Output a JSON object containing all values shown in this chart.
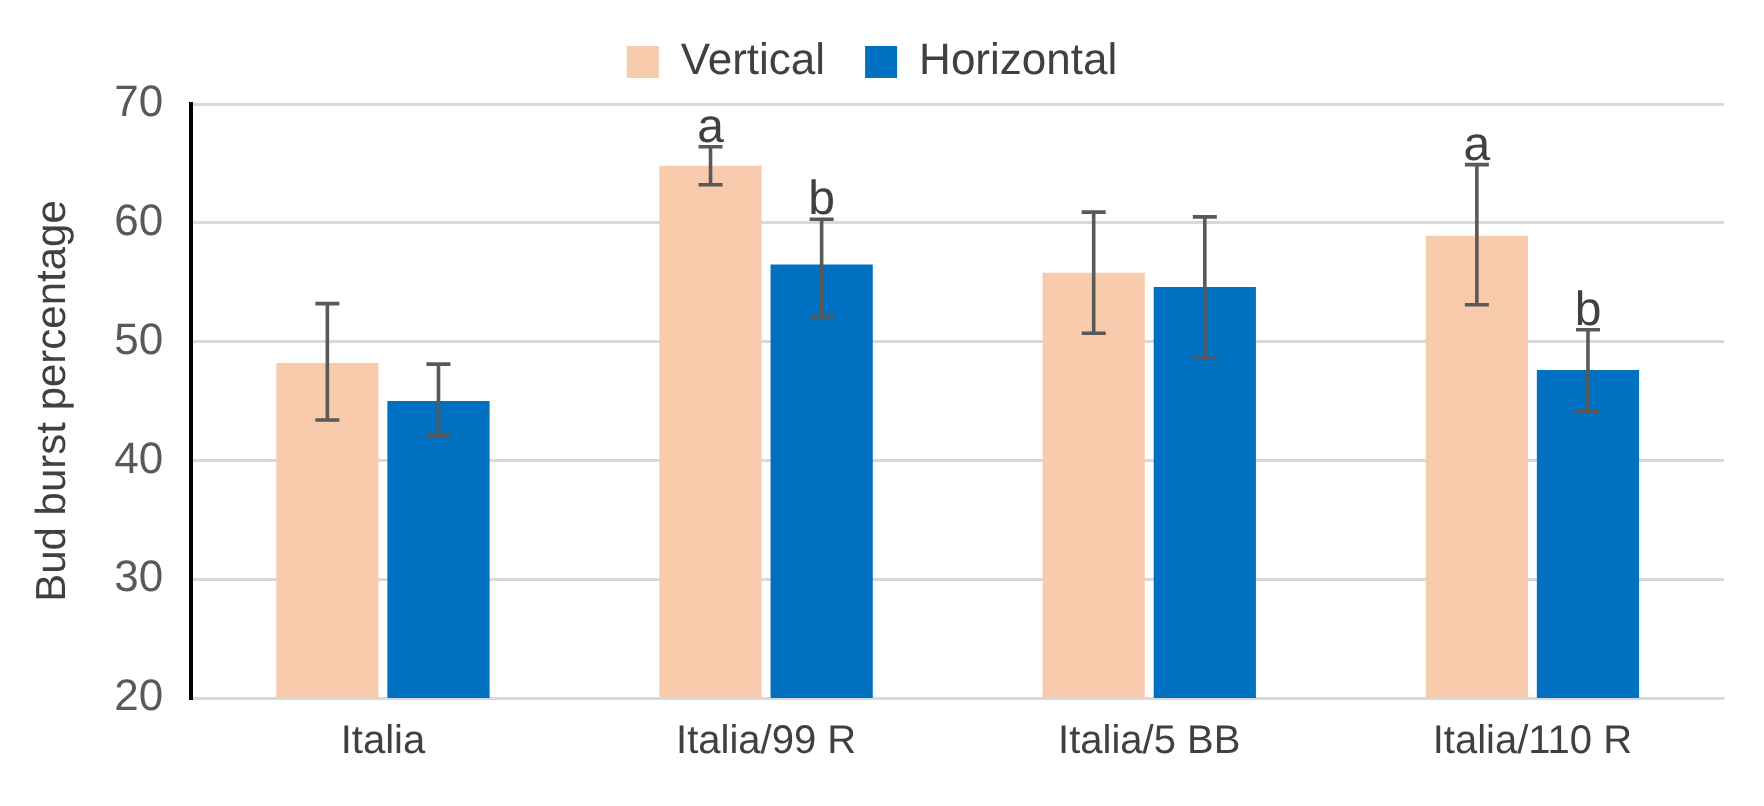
{
  "chart_data": {
    "type": "bar",
    "ylabel": "Bud burst percentage",
    "categories": [
      "Italia",
      "Italia/99 R",
      "Italia/5 BB",
      "Italia/110 R"
    ],
    "series": [
      {
        "name": "Vertical",
        "color": "#f8cbad",
        "values": [
          48.2,
          64.8,
          55.8,
          58.9
        ],
        "errors": [
          [
            43.4,
            53.2
          ],
          [
            63.2,
            66.4
          ],
          [
            50.7,
            60.9
          ],
          [
            53.1,
            64.9
          ]
        ]
      },
      {
        "name": "Horizontal",
        "color": "#0070c0",
        "values": [
          45.0,
          56.5,
          54.6,
          47.6
        ],
        "errors": [
          [
            42.1,
            48.1
          ],
          [
            52.1,
            60.3
          ],
          [
            48.6,
            60.5
          ],
          [
            44.1,
            51.0
          ]
        ]
      }
    ],
    "ylim": [
      20,
      70
    ],
    "yticks": [
      20,
      30,
      40,
      50,
      60,
      70
    ],
    "grid": "y",
    "legend": "top",
    "annotations": [
      {
        "text": "a",
        "x": "Italia/99 R",
        "y": 64.8
      },
      {
        "text": "b",
        "x": "Italia/99 R",
        "y": 56.5
      },
      {
        "text": "a",
        "x": "Italia/110 R",
        "y": 58.9
      },
      {
        "text": "b",
        "x": "Italia/110 R",
        "y": 47.6
      }
    ]
  }
}
